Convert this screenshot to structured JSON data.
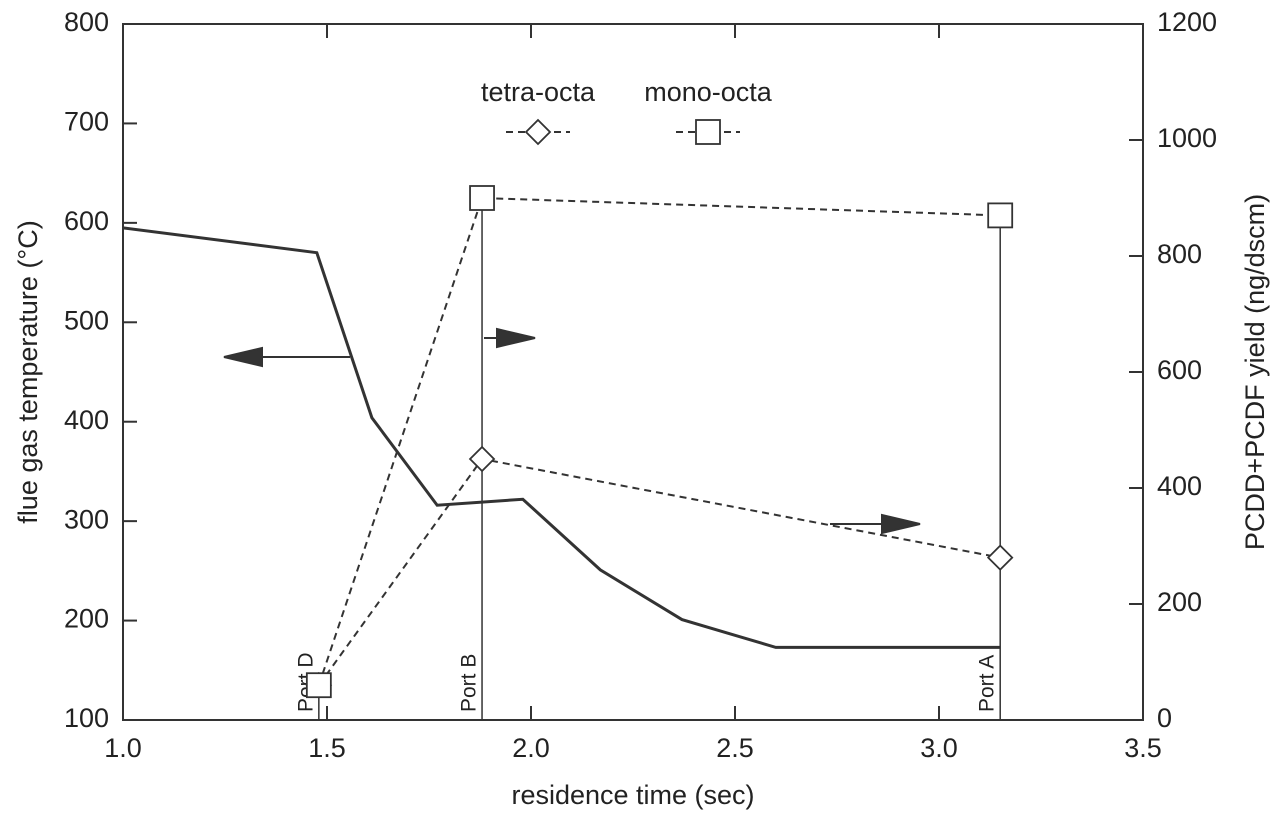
{
  "chart_data": {
    "type": "line",
    "x_label": "residence time (sec)",
    "y_label": "flue gas temperature (°C)",
    "y2_label": "PCDD+PCDF yield (ng/dscm)",
    "xlim": [
      1.0,
      3.5
    ],
    "xticks": [
      {
        "value": 1,
        "label": "1.0"
      },
      1.5,
      {
        "value": 2,
        "label": "2.0"
      },
      2.5,
      {
        "value": 3,
        "label": "3.0"
      },
      3.5
    ],
    "ylim": [
      100,
      800
    ],
    "yticks": [
      100,
      200,
      300,
      400,
      500,
      600,
      700,
      800
    ],
    "y2lim": [
      0,
      1200
    ],
    "y2ticks": [
      0,
      200,
      400,
      600,
      800,
      1000,
      1200
    ],
    "temperature": {
      "color": "#333333",
      "x": [
        1.0,
        1.475,
        1.61,
        1.77,
        1.98,
        2.17,
        2.37,
        2.6,
        3.15
      ],
      "values": [
        595,
        570,
        404,
        316,
        322,
        251,
        201,
        173,
        173
      ]
    },
    "x": [
      1.48,
      1.88,
      3.15
    ],
    "series": [
      {
        "name": "tetra-octa",
        "color": "#333333",
        "marker": "diamond",
        "linestyle": "dashed",
        "axis": "y2",
        "values": [
          60,
          450,
          280
        ]
      },
      {
        "name": "mono-octa",
        "color": "#333333",
        "marker": "square",
        "linestyle": "dashed",
        "axis": "y2",
        "values": [
          60,
          900,
          870
        ]
      }
    ],
    "ports": [
      "Port D",
      "Port B",
      "Port A"
    ]
  }
}
